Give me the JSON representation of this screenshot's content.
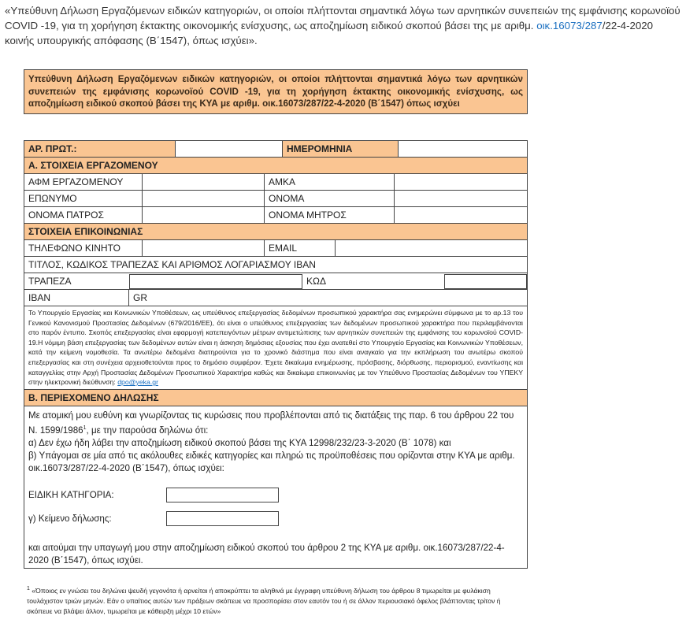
{
  "intro": {
    "before": "«Υπεύθυνη Δήλωση Εργαζόμενων ειδικών κατηγοριών, οι οποίοι πλήττονται σημαντικά λόγω των αρνητικών συνεπειών της εμφάνισης κορωνοϊού COVID -19, για τη χορήγηση έκτακτης οικονομικής ενίσχυσης, ως αποζημίωση ειδικού σκοπού βάσει της με αριθμ. ",
    "link": "οικ.16073/287",
    "after": "/22-4-2020 κοινής υπουργικής απόφασης (Β΄1547), όπως ισχύει»."
  },
  "header_box": "Υπεύθυνη Δήλωση Εργαζόμενων ειδικών κατηγοριών, οι οποίοι πλήττονται σημαντικά λόγω των αρνητικών συνεπειών της εμφάνισης κορωνοϊού COVID -19, για τη χορήγηση έκτακτης οικονομικής ενίσχυσης, ως αποζημίωση ειδικού σκοπού βάσει της ΚΥΑ με αριθμ. οικ.16073/287/22-4-2020 (Β΄1547) όπως ισχύει",
  "form": {
    "protocol_label": "ΑΡ. ΠΡΩΤ.:",
    "date_label": "ΗΜΕΡΟΜΗΝΙΑ",
    "section_a": "Α. ΣΤΟΙΧΕΙΑ ΕΡΓΑΖΟΜΕΝΟΥ",
    "fields": [
      "ΑΦΜ ΕΡΓΑΖΟΜΕΝΟΥ",
      "ΑΜΚΑ",
      "ΕΠΩΝΥΜΟ",
      "ΟΝΟΜΑ",
      "ΟΝΟΜΑ ΠΑΤΡΟΣ",
      "ΟΝΟΜΑ ΜΗΤΡΟΣ"
    ],
    "section_contact": "ΣΤΟΙΧΕΙΑ  ΕΠΙΚΟΙΝΩΝΙΑΣ",
    "phone_label": "ΤΗΛΕΦΩΝΟ ΚΙΝΗΤΟ",
    "email_label": "EMAIL",
    "bank_title": "ΤΙΤΛΟΣ, ΚΩΔΙΚΟΣ ΤΡΑΠΕΖΑΣ ΚΑΙ  ΑΡΙΘΜΟΣ ΛΟΓΑΡΙΑΣΜΟΥ IBAN",
    "bank_label": "ΤΡΑΠΕΖΑ",
    "code_label": "ΚΩΔ",
    "iban_label": "IBAN",
    "iban_prefix": "GR",
    "privacy": {
      "text": "Το Υπουργείο Εργασίας και Κοινωνικών Υποθέσεων, ως υπεύθυνος επεξεργασίας δεδομένων προσωπικού χαρακτήρα σας ενημερώνει σύμφωνα με το αρ.13 του Γενικού Κανονισμού Προστασίας Δεδομένων (679/2016/ΕΕ), ότι είναι ο υπεύθυνος επεξεργασίας των δεδομένων προσωπικού χαρακτήρα που περιλαμβάνονται στο παρόν έντυπο. Σκοπός επεξεργασίας είναι εφαρμογή κατεπειγόντων μέτρων αντιμετώπισης των αρνητικών συνεπειών της εμφάνισης του κορωνοϊού COVID-19.Η νόμιμη βάση επεξεργασίας των δεδομένων αυτών είναι η άσκηση δημόσιας εξουσίας που έχει ανατεθεί στο Υπουργείο Εργασίας και Κοινωνικών Υποθέσεων, κατά την κείμενη νομοθεσία. Τα ανωτέρω δεδομένα διατηρούνται για το χρονικό διάστημα που είναι αναγκαίο για την εκπλήρωση του ανωτέρω σκοπού επεξεργασίας και στη συνέχεια αρχειοθετούνται προς το δημόσιο συμφέρον. Έχετε δικαίωμα ενημέρωσης, πρόσβασης, διόρθωσης, περιορισμού, εναντίωσης και καταγγελίας στην Αρχή Προστασίας Δεδομένων Προσωπικού Χαρακτήρα καθώς και δικαίωμα επικοινωνίας με τον Υπεύθυνο Προστασίας Δεδομένων του ΥΠΕΚΥ στην ηλεκτρονική διεύθυνση: ",
      "link": "dpo@yeka.gr"
    },
    "section_b": "Β. ΠΕΡΙΕΧΟΜΕΝΟ ΔΗΛΩΣΗΣ",
    "declaration": {
      "intro": "Με ατομική μου ευθύνη και γνωρίζοντας τις κυρώσεις που προβλέπονται από τις διατάξεις της παρ. 6 του άρθρου 22 του Ν. 1599/1986",
      "intro_marker": "1",
      "intro_end": ", με την παρούσα δηλώνω ότι:",
      "item_a": "α) Δεν έχω ήδη λάβει την αποζημίωση ειδικού σκοπού  βάσει της ΚΥΑ 12998/232/23-3-2020  (Β΄ 1078) και",
      "item_b": "β) Υπάγομαι σε μία από τις ακόλουθες ειδικές κατηγορίες και πληρώ τις προϋποθέσεις που ορίζονται στην ΚΥΑ με αριθμ. οικ.16073/287/22-4-2020 (Β΄1547), όπως ισχύει:",
      "category_label": "ΕΙΔΙΚΗ ΚΑΤΗΓΟΡΙΑ:",
      "statement_label": "γ) Κείμενο δήλωσης:",
      "closing": "και αιτούμαι την υπαγωγή μου στην αποζημίωση ειδικού σκοπού του άρθρου 2 της ΚΥΑ με αριθμ. οικ.16073/287/22-4-2020 (Β΄1547), όπως ισχύει."
    }
  },
  "footnote": {
    "marker": "1",
    "text": "«Όποιος εν γνώσει του δηλώνει ψευδή γεγονότα ή αρνείται ή αποκρύπτει τα αληθινά  με έγγραφη υπεύθυνη δήλωση του  άρθρου 8 τιμωρείται με φυλάκιση τουλάχιστον τριών μηνών. Εάν ο υπαίτιος αυτών των πράξεων σκόπευε να προσπορίσει στον εαυτόν του ή σε άλλον περιουσιακό όφελος βλάπτοντας τρίτον ή σκόπευε να βλάψει άλλον, τιμωρείται με κάθειρξη μέχρι 10 ετών»"
  }
}
